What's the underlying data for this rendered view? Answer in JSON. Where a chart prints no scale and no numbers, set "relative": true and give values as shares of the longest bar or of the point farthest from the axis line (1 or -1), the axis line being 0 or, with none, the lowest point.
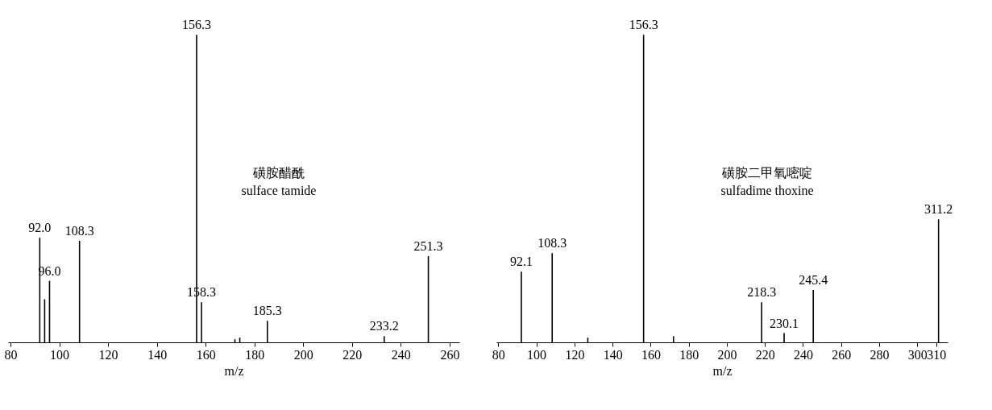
{
  "chart_data": [
    {
      "type": "bar",
      "relative": true,
      "xlabel": "m/z",
      "xlim": [
        79,
        264
      ],
      "xticks": [
        80,
        100,
        120,
        140,
        160,
        180,
        200,
        220,
        240,
        260
      ],
      "x": [
        92.0,
        94.0,
        96.0,
        108.3,
        156.3,
        158.3,
        172.0,
        174.0,
        185.3,
        233.2,
        251.3
      ],
      "values": [
        0.34,
        0.14,
        0.2,
        0.33,
        1,
        0.13,
        0.01,
        0.015,
        0.07,
        0.02,
        0.28
      ],
      "color": "#000000",
      "grid": false,
      "annotations": [
        "磺胺醋酰",
        "sulface tamide",
        {
          "text": "92.0",
          "x": 92.0,
          "y": 0.34
        },
        {
          "text": "96.0",
          "x": 96.0,
          "y": 0.2
        },
        {
          "text": "108.3",
          "x": 108.3,
          "y": 0.33
        },
        {
          "text": "156.3",
          "x": 156.3,
          "y": 1
        },
        {
          "text": "158.3",
          "x": 158.3,
          "y": 0.13
        },
        {
          "text": "185.3",
          "x": 185.3,
          "y": 0.07
        },
        {
          "text": "233.2",
          "x": 233.2,
          "y": 0.02
        },
        {
          "text": "251.3",
          "x": 251.3,
          "y": 0.28
        }
      ]
    },
    {
      "type": "bar",
      "relative": true,
      "xlabel": "m/z",
      "xlim": [
        79,
        316
      ],
      "xticks": [
        80,
        100,
        120,
        140,
        160,
        180,
        200,
        220,
        240,
        260,
        280,
        300,
        310
      ],
      "x": [
        92.1,
        108.3,
        127.0,
        156.3,
        172.0,
        218.3,
        230.1,
        245.4,
        311.2
      ],
      "values": [
        0.23,
        0.29,
        0.015,
        1,
        0.02,
        0.13,
        0.03,
        0.17,
        0.4
      ],
      "color": "#000000",
      "grid": false,
      "annotations": [
        "磺胺二甲氧嘧啶",
        "sulfadime thoxine",
        {
          "text": "92.1",
          "x": 92.1,
          "y": 0.23
        },
        {
          "text": "108.3",
          "x": 108.3,
          "y": 0.29
        },
        {
          "text": "156.3",
          "x": 156.3,
          "y": 1
        },
        {
          "text": "218.3",
          "x": 218.3,
          "y": 0.13
        },
        {
          "text": "230.1",
          "x": 230.1,
          "y": 0.03
        },
        {
          "text": "245.4",
          "x": 245.4,
          "y": 0.17
        },
        {
          "text": "311.2",
          "x": 311.2,
          "y": 0.4
        }
      ]
    }
  ]
}
